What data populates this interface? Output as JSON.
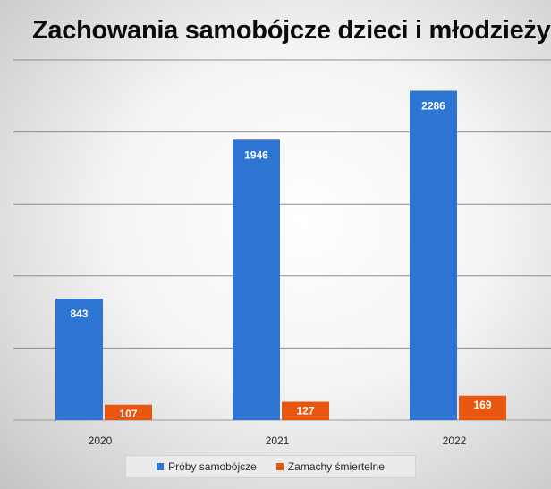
{
  "chart_data": {
    "type": "bar",
    "title": "Zachowania samobójcze dzieci i młodzieży",
    "categories": [
      "2020",
      "2021",
      "2022"
    ],
    "series": [
      {
        "name": "Próby samobójcze",
        "values": [
          843,
          1946,
          2286
        ],
        "color": "#2e74d2"
      },
      {
        "name": "Zamachy śmiertelne",
        "values": [
          107,
          127,
          169
        ],
        "color": "#e8560f"
      }
    ],
    "ylim": [
      0,
      2500
    ],
    "grid": true,
    "legend_position": "bottom",
    "data_labels": true
  }
}
